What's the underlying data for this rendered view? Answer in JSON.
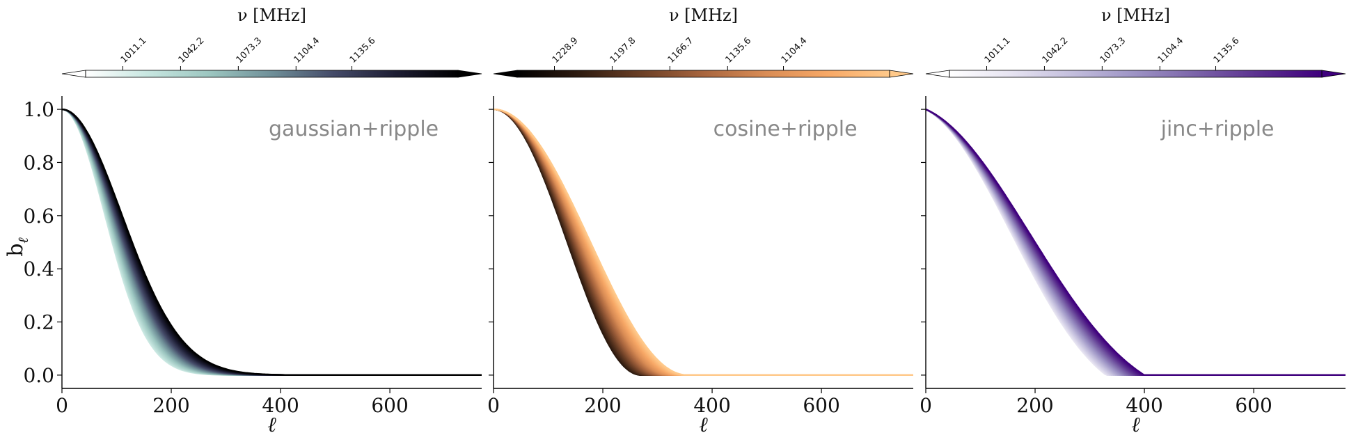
{
  "figure": {
    "ylabel_main": "b",
    "ylabel_sub": "ℓ",
    "xlabel": "ℓ",
    "cbar_label": "ν [MHz]"
  },
  "chart_data": [
    {
      "type": "line",
      "annotation": "gaussian+ripple",
      "xlim": [
        0,
        768
      ],
      "ylim": [
        -0.05,
        1.05
      ],
      "xticks": [
        0,
        200,
        400,
        600
      ],
      "xtick_labels": [
        "0",
        "200",
        "400",
        "600"
      ],
      "yticks": [
        0.0,
        0.2,
        0.4,
        0.6,
        0.8,
        1.0
      ],
      "ytick_labels": [
        "0.0",
        "0.2",
        "0.4",
        "0.6",
        "0.8",
        "1.0"
      ],
      "show_yaxis_labels": true,
      "grid": false,
      "family": "gaussian",
      "curve_width_range": [
        100,
        140
      ],
      "n_curves": 36,
      "colormap": [
        "#ffffff",
        "#c7e6e0",
        "#9cc6c0",
        "#6f8f98",
        "#444a68",
        "#1d1d33",
        "#000000"
      ],
      "colorbar": {
        "label": "ν [MHz]",
        "tick_labels": [
          "1011.1",
          "1042.2",
          "1073.3",
          "1104.4",
          "1135.6"
        ]
      }
    },
    {
      "type": "line",
      "annotation": "cosine+ripple",
      "xlim": [
        0,
        768
      ],
      "ylim": [
        -0.05,
        1.05
      ],
      "xticks": [
        0,
        200,
        400,
        600
      ],
      "xtick_labels": [
        "0",
        "200",
        "400",
        "600"
      ],
      "yticks": [
        0.0,
        0.2,
        0.4,
        0.6,
        0.8,
        1.0
      ],
      "ytick_labels": [
        "0.0",
        "0.2",
        "0.4",
        "0.6",
        "0.8",
        "1.0"
      ],
      "show_yaxis_labels": false,
      "grid": false,
      "family": "cosine",
      "curve_width_range": [
        270,
        355
      ],
      "n_curves": 36,
      "colormap": [
        "#000000",
        "#2e1b10",
        "#6b3f26",
        "#a8653e",
        "#d98c55",
        "#f7a866",
        "#ffc98a"
      ],
      "colorbar": {
        "label": "ν [MHz]",
        "tick_labels": [
          "1228.9",
          "1197.8",
          "1166.7",
          "1135.6",
          "1104.4"
        ]
      }
    },
    {
      "type": "line",
      "annotation": "jinc+ripple",
      "xlim": [
        0,
        768
      ],
      "ylim": [
        -0.05,
        1.05
      ],
      "xticks": [
        0,
        200,
        400,
        600
      ],
      "xtick_labels": [
        "0",
        "200",
        "400",
        "600"
      ],
      "yticks": [
        0.0,
        0.2,
        0.4,
        0.6,
        0.8,
        1.0
      ],
      "ytick_labels": [
        "0.0",
        "0.2",
        "0.4",
        "0.6",
        "0.8",
        "1.0"
      ],
      "show_yaxis_labels": false,
      "grid": false,
      "family": "jinc",
      "curve_width_range": [
        330,
        400
      ],
      "n_curves": 36,
      "colormap": [
        "#ffffff",
        "#e6e3f1",
        "#c2bddc",
        "#9c92c4",
        "#7a62a8",
        "#5a2f8e",
        "#3f007d"
      ],
      "colorbar": {
        "label": "ν [MHz]",
        "tick_labels": [
          "1011.1",
          "1042.2",
          "1073.3",
          "1104.4",
          "1135.6"
        ]
      }
    }
  ]
}
